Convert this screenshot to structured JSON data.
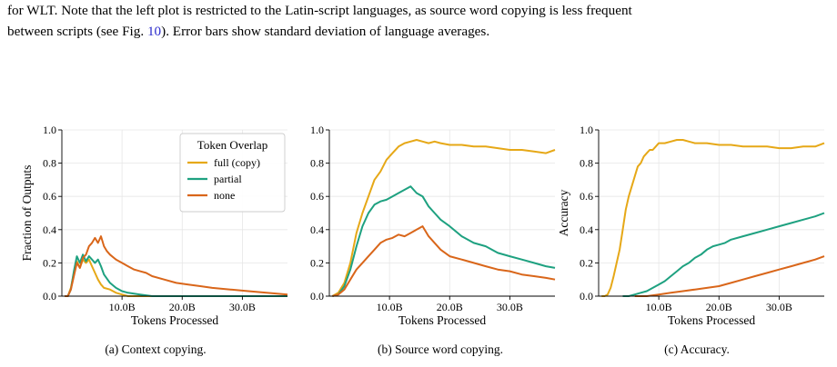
{
  "caption": {
    "line1": "for WLT. Note that the left plot is restricted to the Latin-script languages, as source word copying is less frequent",
    "line2_prefix": "between scripts (see Fig. ",
    "line2_ref": "10",
    "line2_suffix": "). Error bars show standard deviation of language averages."
  },
  "colors": {
    "full": "#E6A817",
    "partial": "#1EA180",
    "none": "#D9661A",
    "grid": "#e6e6e6",
    "ref": "#2b2bcc"
  },
  "chart_data": [
    {
      "type": "line",
      "caption": "(a) Context copying.",
      "xlabel": "Tokens Processed",
      "ylabel": "Fraction of Outputs",
      "xlim": [
        0,
        37.5
      ],
      "ylim": [
        0,
        1.0
      ],
      "xticks": [
        "10.0B",
        "20.0B",
        "30.0B"
      ],
      "yticks": [
        "0.0",
        "0.2",
        "0.4",
        "0.6",
        "0.8",
        "1.0"
      ],
      "grid": true,
      "legend": {
        "title": "Token Overlap",
        "position": "upper-right",
        "entries": [
          "full (copy)",
          "partial",
          "none"
        ]
      },
      "series": [
        {
          "name": "full (copy)",
          "key": "full",
          "points": [
            [
              0.5,
              0.0
            ],
            [
              1.0,
              0.0
            ],
            [
              1.5,
              0.05
            ],
            [
              2.0,
              0.14
            ],
            [
              2.5,
              0.21
            ],
            [
              3.0,
              0.17
            ],
            [
              3.5,
              0.22
            ],
            [
              4.0,
              0.2
            ],
            [
              4.5,
              0.22
            ],
            [
              5.0,
              0.18
            ],
            [
              5.5,
              0.14
            ],
            [
              6.0,
              0.1
            ],
            [
              6.5,
              0.07
            ],
            [
              7.0,
              0.05
            ],
            [
              8.0,
              0.04
            ],
            [
              9.0,
              0.02
            ],
            [
              10.0,
              0.01
            ],
            [
              11.0,
              0.0
            ],
            [
              37.5,
              0.0
            ]
          ]
        },
        {
          "name": "partial",
          "key": "partial",
          "points": [
            [
              0.5,
              0.0
            ],
            [
              1.0,
              0.0
            ],
            [
              1.5,
              0.04
            ],
            [
              2.0,
              0.15
            ],
            [
              2.5,
              0.24
            ],
            [
              3.0,
              0.2
            ],
            [
              3.5,
              0.25
            ],
            [
              4.0,
              0.21
            ],
            [
              4.5,
              0.24
            ],
            [
              5.0,
              0.22
            ],
            [
              5.5,
              0.2
            ],
            [
              6.0,
              0.22
            ],
            [
              6.5,
              0.18
            ],
            [
              7.0,
              0.13
            ],
            [
              8.0,
              0.08
            ],
            [
              9.0,
              0.05
            ],
            [
              10.0,
              0.03
            ],
            [
              11.0,
              0.02
            ],
            [
              13.0,
              0.01
            ],
            [
              15.0,
              0.0
            ],
            [
              37.5,
              0.0
            ]
          ]
        },
        {
          "name": "none",
          "key": "none",
          "points": [
            [
              0.5,
              0.0
            ],
            [
              1.0,
              0.0
            ],
            [
              1.5,
              0.04
            ],
            [
              2.0,
              0.12
            ],
            [
              2.5,
              0.2
            ],
            [
              3.0,
              0.17
            ],
            [
              3.5,
              0.23
            ],
            [
              4.0,
              0.25
            ],
            [
              4.5,
              0.3
            ],
            [
              5.0,
              0.32
            ],
            [
              5.5,
              0.35
            ],
            [
              6.0,
              0.32
            ],
            [
              6.5,
              0.36
            ],
            [
              7.0,
              0.3
            ],
            [
              7.5,
              0.27
            ],
            [
              8.0,
              0.25
            ],
            [
              9.0,
              0.22
            ],
            [
              10.0,
              0.2
            ],
            [
              11.0,
              0.18
            ],
            [
              12.0,
              0.16
            ],
            [
              13.0,
              0.15
            ],
            [
              14.0,
              0.14
            ],
            [
              15.0,
              0.12
            ],
            [
              17.0,
              0.1
            ],
            [
              19.0,
              0.08
            ],
            [
              21.0,
              0.07
            ],
            [
              23.0,
              0.06
            ],
            [
              25.0,
              0.05
            ],
            [
              28.0,
              0.04
            ],
            [
              31.0,
              0.03
            ],
            [
              34.0,
              0.02
            ],
            [
              37.5,
              0.01
            ]
          ]
        }
      ]
    },
    {
      "type": "line",
      "caption": "(b) Source word copying.",
      "xlabel": "Tokens Processed",
      "ylabel": "",
      "xlim": [
        0,
        37.5
      ],
      "ylim": [
        0,
        1.0
      ],
      "xticks": [
        "10.0B",
        "20.0B",
        "30.0B"
      ],
      "yticks": [
        "0.0",
        "0.2",
        "0.4",
        "0.6",
        "0.8",
        "1.0"
      ],
      "grid": true,
      "series": [
        {
          "name": "",
          "key": "full",
          "points": [
            [
              0.5,
              0.0
            ],
            [
              1.5,
              0.02
            ],
            [
              2.5,
              0.08
            ],
            [
              3.5,
              0.2
            ],
            [
              4.5,
              0.38
            ],
            [
              5.5,
              0.5
            ],
            [
              6.5,
              0.6
            ],
            [
              7.5,
              0.7
            ],
            [
              8.5,
              0.75
            ],
            [
              9.5,
              0.82
            ],
            [
              10.5,
              0.86
            ],
            [
              11.5,
              0.9
            ],
            [
              12.5,
              0.92
            ],
            [
              13.5,
              0.93
            ],
            [
              14.5,
              0.94
            ],
            [
              15.5,
              0.93
            ],
            [
              16.5,
              0.92
            ],
            [
              17.5,
              0.93
            ],
            [
              18.5,
              0.92
            ],
            [
              20.0,
              0.91
            ],
            [
              22.0,
              0.91
            ],
            [
              24.0,
              0.9
            ],
            [
              26.0,
              0.9
            ],
            [
              28.0,
              0.89
            ],
            [
              30.0,
              0.88
            ],
            [
              32.0,
              0.88
            ],
            [
              34.0,
              0.87
            ],
            [
              36.0,
              0.86
            ],
            [
              37.5,
              0.88
            ]
          ]
        },
        {
          "name": "",
          "key": "partial",
          "points": [
            [
              0.5,
              0.0
            ],
            [
              1.5,
              0.01
            ],
            [
              2.5,
              0.06
            ],
            [
              3.5,
              0.16
            ],
            [
              4.5,
              0.3
            ],
            [
              5.5,
              0.42
            ],
            [
              6.5,
              0.5
            ],
            [
              7.5,
              0.55
            ],
            [
              8.5,
              0.57
            ],
            [
              9.5,
              0.58
            ],
            [
              10.5,
              0.6
            ],
            [
              11.5,
              0.62
            ],
            [
              12.5,
              0.64
            ],
            [
              13.5,
              0.66
            ],
            [
              14.5,
              0.62
            ],
            [
              15.5,
              0.6
            ],
            [
              16.5,
              0.54
            ],
            [
              17.5,
              0.5
            ],
            [
              18.5,
              0.46
            ],
            [
              20.0,
              0.42
            ],
            [
              22.0,
              0.36
            ],
            [
              24.0,
              0.32
            ],
            [
              26.0,
              0.3
            ],
            [
              28.0,
              0.26
            ],
            [
              30.0,
              0.24
            ],
            [
              32.0,
              0.22
            ],
            [
              34.0,
              0.2
            ],
            [
              36.0,
              0.18
            ],
            [
              37.5,
              0.17
            ]
          ]
        },
        {
          "name": "",
          "key": "none",
          "points": [
            [
              0.5,
              0.0
            ],
            [
              1.5,
              0.01
            ],
            [
              2.5,
              0.04
            ],
            [
              3.5,
              0.1
            ],
            [
              4.5,
              0.16
            ],
            [
              5.5,
              0.2
            ],
            [
              6.5,
              0.24
            ],
            [
              7.5,
              0.28
            ],
            [
              8.5,
              0.32
            ],
            [
              9.5,
              0.34
            ],
            [
              10.5,
              0.35
            ],
            [
              11.5,
              0.37
            ],
            [
              12.5,
              0.36
            ],
            [
              13.5,
              0.38
            ],
            [
              14.5,
              0.4
            ],
            [
              15.5,
              0.42
            ],
            [
              16.5,
              0.36
            ],
            [
              17.5,
              0.32
            ],
            [
              18.5,
              0.28
            ],
            [
              20.0,
              0.24
            ],
            [
              22.0,
              0.22
            ],
            [
              24.0,
              0.2
            ],
            [
              26.0,
              0.18
            ],
            [
              28.0,
              0.16
            ],
            [
              30.0,
              0.15
            ],
            [
              32.0,
              0.13
            ],
            [
              34.0,
              0.12
            ],
            [
              36.0,
              0.11
            ],
            [
              37.5,
              0.1
            ]
          ]
        }
      ]
    },
    {
      "type": "line",
      "caption": "(c) Accuracy.",
      "xlabel": "Tokens Processed",
      "ylabel": "Accuracy",
      "xlim": [
        0,
        37.5
      ],
      "ylim": [
        0,
        1.0
      ],
      "xticks": [
        "10.0B",
        "20.0B",
        "30.0B"
      ],
      "yticks": [
        "0.0",
        "0.2",
        "0.4",
        "0.6",
        "0.8",
        "1.0"
      ],
      "grid": true,
      "series": [
        {
          "name": "",
          "key": "full",
          "points": [
            [
              0.5,
              0.0
            ],
            [
              1.0,
              0.0
            ],
            [
              1.5,
              0.01
            ],
            [
              2.0,
              0.05
            ],
            [
              2.5,
              0.12
            ],
            [
              3.0,
              0.2
            ],
            [
              3.5,
              0.28
            ],
            [
              4.0,
              0.4
            ],
            [
              4.5,
              0.52
            ],
            [
              5.0,
              0.6
            ],
            [
              5.5,
              0.66
            ],
            [
              6.0,
              0.72
            ],
            [
              6.5,
              0.78
            ],
            [
              7.0,
              0.8
            ],
            [
              7.5,
              0.84
            ],
            [
              8.0,
              0.86
            ],
            [
              8.5,
              0.88
            ],
            [
              9.0,
              0.88
            ],
            [
              9.5,
              0.9
            ],
            [
              10.0,
              0.92
            ],
            [
              11.0,
              0.92
            ],
            [
              12.0,
              0.93
            ],
            [
              13.0,
              0.94
            ],
            [
              14.0,
              0.94
            ],
            [
              15.0,
              0.93
            ],
            [
              16.0,
              0.92
            ],
            [
              18.0,
              0.92
            ],
            [
              20.0,
              0.91
            ],
            [
              22.0,
              0.91
            ],
            [
              24.0,
              0.9
            ],
            [
              26.0,
              0.9
            ],
            [
              28.0,
              0.9
            ],
            [
              30.0,
              0.89
            ],
            [
              32.0,
              0.89
            ],
            [
              34.0,
              0.9
            ],
            [
              36.0,
              0.9
            ],
            [
              37.5,
              0.92
            ]
          ]
        },
        {
          "name": "",
          "key": "partial",
          "points": [
            [
              4.0,
              0.0
            ],
            [
              5.0,
              0.0
            ],
            [
              6.0,
              0.01
            ],
            [
              7.0,
              0.02
            ],
            [
              8.0,
              0.03
            ],
            [
              9.0,
              0.05
            ],
            [
              10.0,
              0.07
            ],
            [
              11.0,
              0.09
            ],
            [
              12.0,
              0.12
            ],
            [
              13.0,
              0.15
            ],
            [
              14.0,
              0.18
            ],
            [
              15.0,
              0.2
            ],
            [
              16.0,
              0.23
            ],
            [
              17.0,
              0.25
            ],
            [
              18.0,
              0.28
            ],
            [
              19.0,
              0.3
            ],
            [
              20.0,
              0.31
            ],
            [
              21.0,
              0.32
            ],
            [
              22.0,
              0.34
            ],
            [
              24.0,
              0.36
            ],
            [
              26.0,
              0.38
            ],
            [
              28.0,
              0.4
            ],
            [
              30.0,
              0.42
            ],
            [
              32.0,
              0.44
            ],
            [
              34.0,
              0.46
            ],
            [
              36.0,
              0.48
            ],
            [
              37.5,
              0.5
            ]
          ]
        },
        {
          "name": "",
          "key": "none",
          "points": [
            [
              6.0,
              0.0
            ],
            [
              8.0,
              0.0
            ],
            [
              10.0,
              0.01
            ],
            [
              12.0,
              0.02
            ],
            [
              14.0,
              0.03
            ],
            [
              16.0,
              0.04
            ],
            [
              18.0,
              0.05
            ],
            [
              20.0,
              0.06
            ],
            [
              22.0,
              0.08
            ],
            [
              24.0,
              0.1
            ],
            [
              26.0,
              0.12
            ],
            [
              28.0,
              0.14
            ],
            [
              30.0,
              0.16
            ],
            [
              32.0,
              0.18
            ],
            [
              34.0,
              0.2
            ],
            [
              36.0,
              0.22
            ],
            [
              37.5,
              0.24
            ]
          ]
        }
      ]
    }
  ]
}
